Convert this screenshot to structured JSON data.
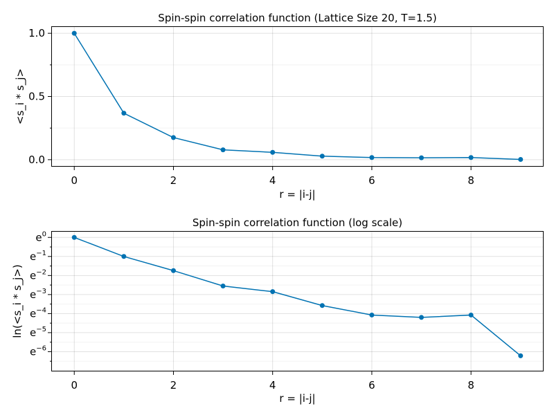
{
  "chart_data": [
    {
      "type": "line",
      "title": "Spin-spin correlation function (Lattice Size 20, T=1.5)",
      "xlabel": "r = |i-j|",
      "ylabel": "<s_i * s_j>",
      "x": [
        0,
        1,
        2,
        3,
        4,
        5,
        6,
        7,
        8,
        9
      ],
      "values": [
        1.0,
        0.368,
        0.175,
        0.078,
        0.058,
        0.028,
        0.017,
        0.015,
        0.017,
        0.002
      ],
      "xlim": [
        -0.45,
        9.45
      ],
      "ylim": [
        -0.05,
        1.05
      ],
      "xticks": [
        0,
        2,
        4,
        6,
        8
      ],
      "xtick_labels": [
        "0",
        "2",
        "4",
        "6",
        "8"
      ],
      "yticks": [
        0.0,
        0.5,
        1.0
      ],
      "ytick_labels": [
        "0.0",
        "0.5",
        "1.0"
      ],
      "y_minor_ticks": [
        0.25,
        0.75
      ],
      "yscale": "linear",
      "grid": true,
      "color": "#0072b2"
    },
    {
      "type": "line",
      "title": "Spin-spin correlation function (log scale)",
      "xlabel": "r = |i-j|",
      "ylabel": "ln(<s_i * s_j>)",
      "x": [
        0,
        1,
        2,
        3,
        4,
        5,
        6,
        7,
        8,
        9
      ],
      "values": [
        1.0,
        0.368,
        0.175,
        0.078,
        0.058,
        0.028,
        0.017,
        0.015,
        0.017,
        0.002
      ],
      "xlim": [
        -0.45,
        9.45
      ],
      "ylim": [
        -7.0,
        0.3
      ],
      "xticks": [
        0,
        2,
        4,
        6,
        8
      ],
      "xtick_labels": [
        "0",
        "2",
        "4",
        "6",
        "8"
      ],
      "ytick_exponents": [
        "0",
        "−1",
        "−2",
        "−3",
        "−4",
        "−5",
        "−6"
      ],
      "ytick_base": "e",
      "yscale": "log (natural)",
      "grid": true,
      "color": "#0072b2"
    }
  ]
}
